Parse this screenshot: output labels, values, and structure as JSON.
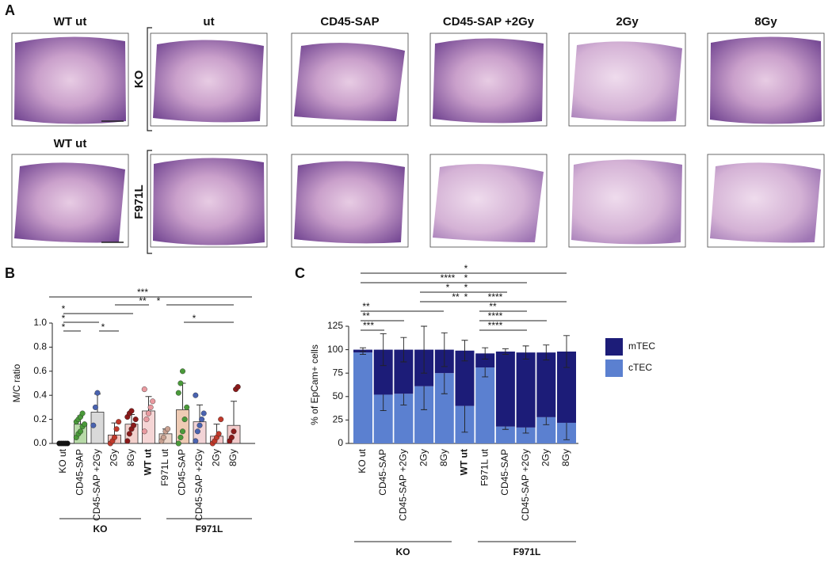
{
  "panel_labels": [
    "A",
    "B",
    "C"
  ],
  "panel_a": {
    "column_headers": [
      "WT ut",
      "ut",
      "CD45-SAP",
      "CD45-SAP +2Gy",
      "2Gy",
      "8Gy"
    ],
    "row2_header": "WT ut",
    "row_labels": [
      "KO",
      "F971L"
    ]
  },
  "chart_data": [
    {
      "type": "bar_dots",
      "ylabel": "M/C ratio",
      "categories": [
        "KO ut",
        "CD45-SAP",
        "CD45-SAP +2Gy",
        "2Gy",
        "8Gy",
        "WT ut",
        "F971L ut",
        "CD45-SAP",
        "CD45-SAP +2Gy",
        "2Gy",
        "8Gy"
      ],
      "values": [
        0.0,
        0.16,
        0.26,
        0.07,
        0.16,
        0.27,
        0.08,
        0.28,
        0.18,
        0.06,
        0.15
      ],
      "errors": [
        0.01,
        0.07,
        0.15,
        0.1,
        0.08,
        0.12,
        0.04,
        0.22,
        0.14,
        0.1,
        0.2
      ],
      "bar_colors": [
        "#ffffff",
        "#b8dba8",
        "#d9d9d9",
        "#f4c6c0",
        "#f3d0cc",
        "#f5d5d5",
        "#ecd5c8",
        "#efcbb4",
        "#f2d3d6",
        "#f4c6c8",
        "#f3cccc"
      ],
      "point_colors": [
        "#111111",
        "#4a9a3a",
        "#4a63b0",
        "#c0392b",
        "#8b1a1a",
        "#e99aa0",
        "#c8a090",
        "#4a9a3a",
        "#4a63b0",
        "#c0392b",
        "#8b1a1a"
      ],
      "points": [
        [
          0,
          0,
          0,
          0,
          0
        ],
        [
          0.05,
          0.08,
          0.1,
          0.14,
          0.16,
          0.18,
          0.2,
          0.22,
          0.25
        ],
        [
          0.15,
          0.3,
          0.42
        ],
        [
          0,
          0.02,
          0.05,
          0.12,
          0.18
        ],
        [
          0.02,
          0.08,
          0.12,
          0.15,
          0.2,
          0.22,
          0.25,
          0.27
        ],
        [
          0.1,
          0.2,
          0.25,
          0.3,
          0.35,
          0.45
        ],
        [
          0.02,
          0.05,
          0.1,
          0.12
        ],
        [
          0,
          0.05,
          0.1,
          0.2,
          0.3,
          0.42,
          0.5,
          0.6
        ],
        [
          0.02,
          0.1,
          0.15,
          0.2,
          0.25,
          0.4
        ],
        [
          0,
          0.02,
          0.05,
          0.08,
          0.2
        ],
        [
          0.02,
          0.05,
          0.1,
          0.45,
          0.47
        ]
      ],
      "ylim": [
        0,
        1.0
      ],
      "yticks": [
        {
          "value": 0,
          "label": "0.0"
        },
        0.2,
        0.4,
        0.6,
        0.8,
        {
          "value": 1.0,
          "label": "1.0"
        }
      ],
      "groups": [
        "KO",
        "F971L"
      ],
      "significance": [
        "***",
        "**",
        "*",
        "*",
        "*",
        "*",
        "*",
        "*"
      ]
    },
    {
      "type": "stacked_bar",
      "ylabel": "% of EpCam+ cells",
      "categories": [
        "KO ut",
        "CD45-SAP",
        "CD45-SAP +2Gy",
        "2Gy",
        "8Gy",
        "WT ut",
        "F971L ut",
        "CD45-SAP",
        "CD45-SAP +2Gy",
        "2Gy",
        "8Gy"
      ],
      "series": [
        {
          "name": "cTEC",
          "color": "#5b80d0",
          "values": [
            97,
            52,
            53,
            61,
            75,
            40,
            81,
            18,
            17,
            28,
            22
          ],
          "errors": [
            2,
            17,
            12,
            25,
            22,
            28,
            10,
            3,
            6,
            8,
            18
          ]
        },
        {
          "name": "mTEC",
          "color": "#1c1c78",
          "values": [
            3,
            48,
            47,
            39,
            25,
            59,
            15,
            80,
            80,
            69,
            76
          ],
          "errors": [
            2,
            17,
            13,
            25,
            18,
            11,
            6,
            3,
            7,
            8,
            17
          ]
        }
      ],
      "ylim": [
        0,
        125
      ],
      "yticks": [
        0,
        25,
        50,
        75,
        100,
        125
      ],
      "groups": [
        "KO",
        "F971L"
      ],
      "significance": [
        "*",
        "****",
        "*",
        "*",
        "*",
        "**",
        "*",
        "****",
        "**",
        "****",
        "****",
        "**",
        "**",
        "***"
      ]
    }
  ]
}
